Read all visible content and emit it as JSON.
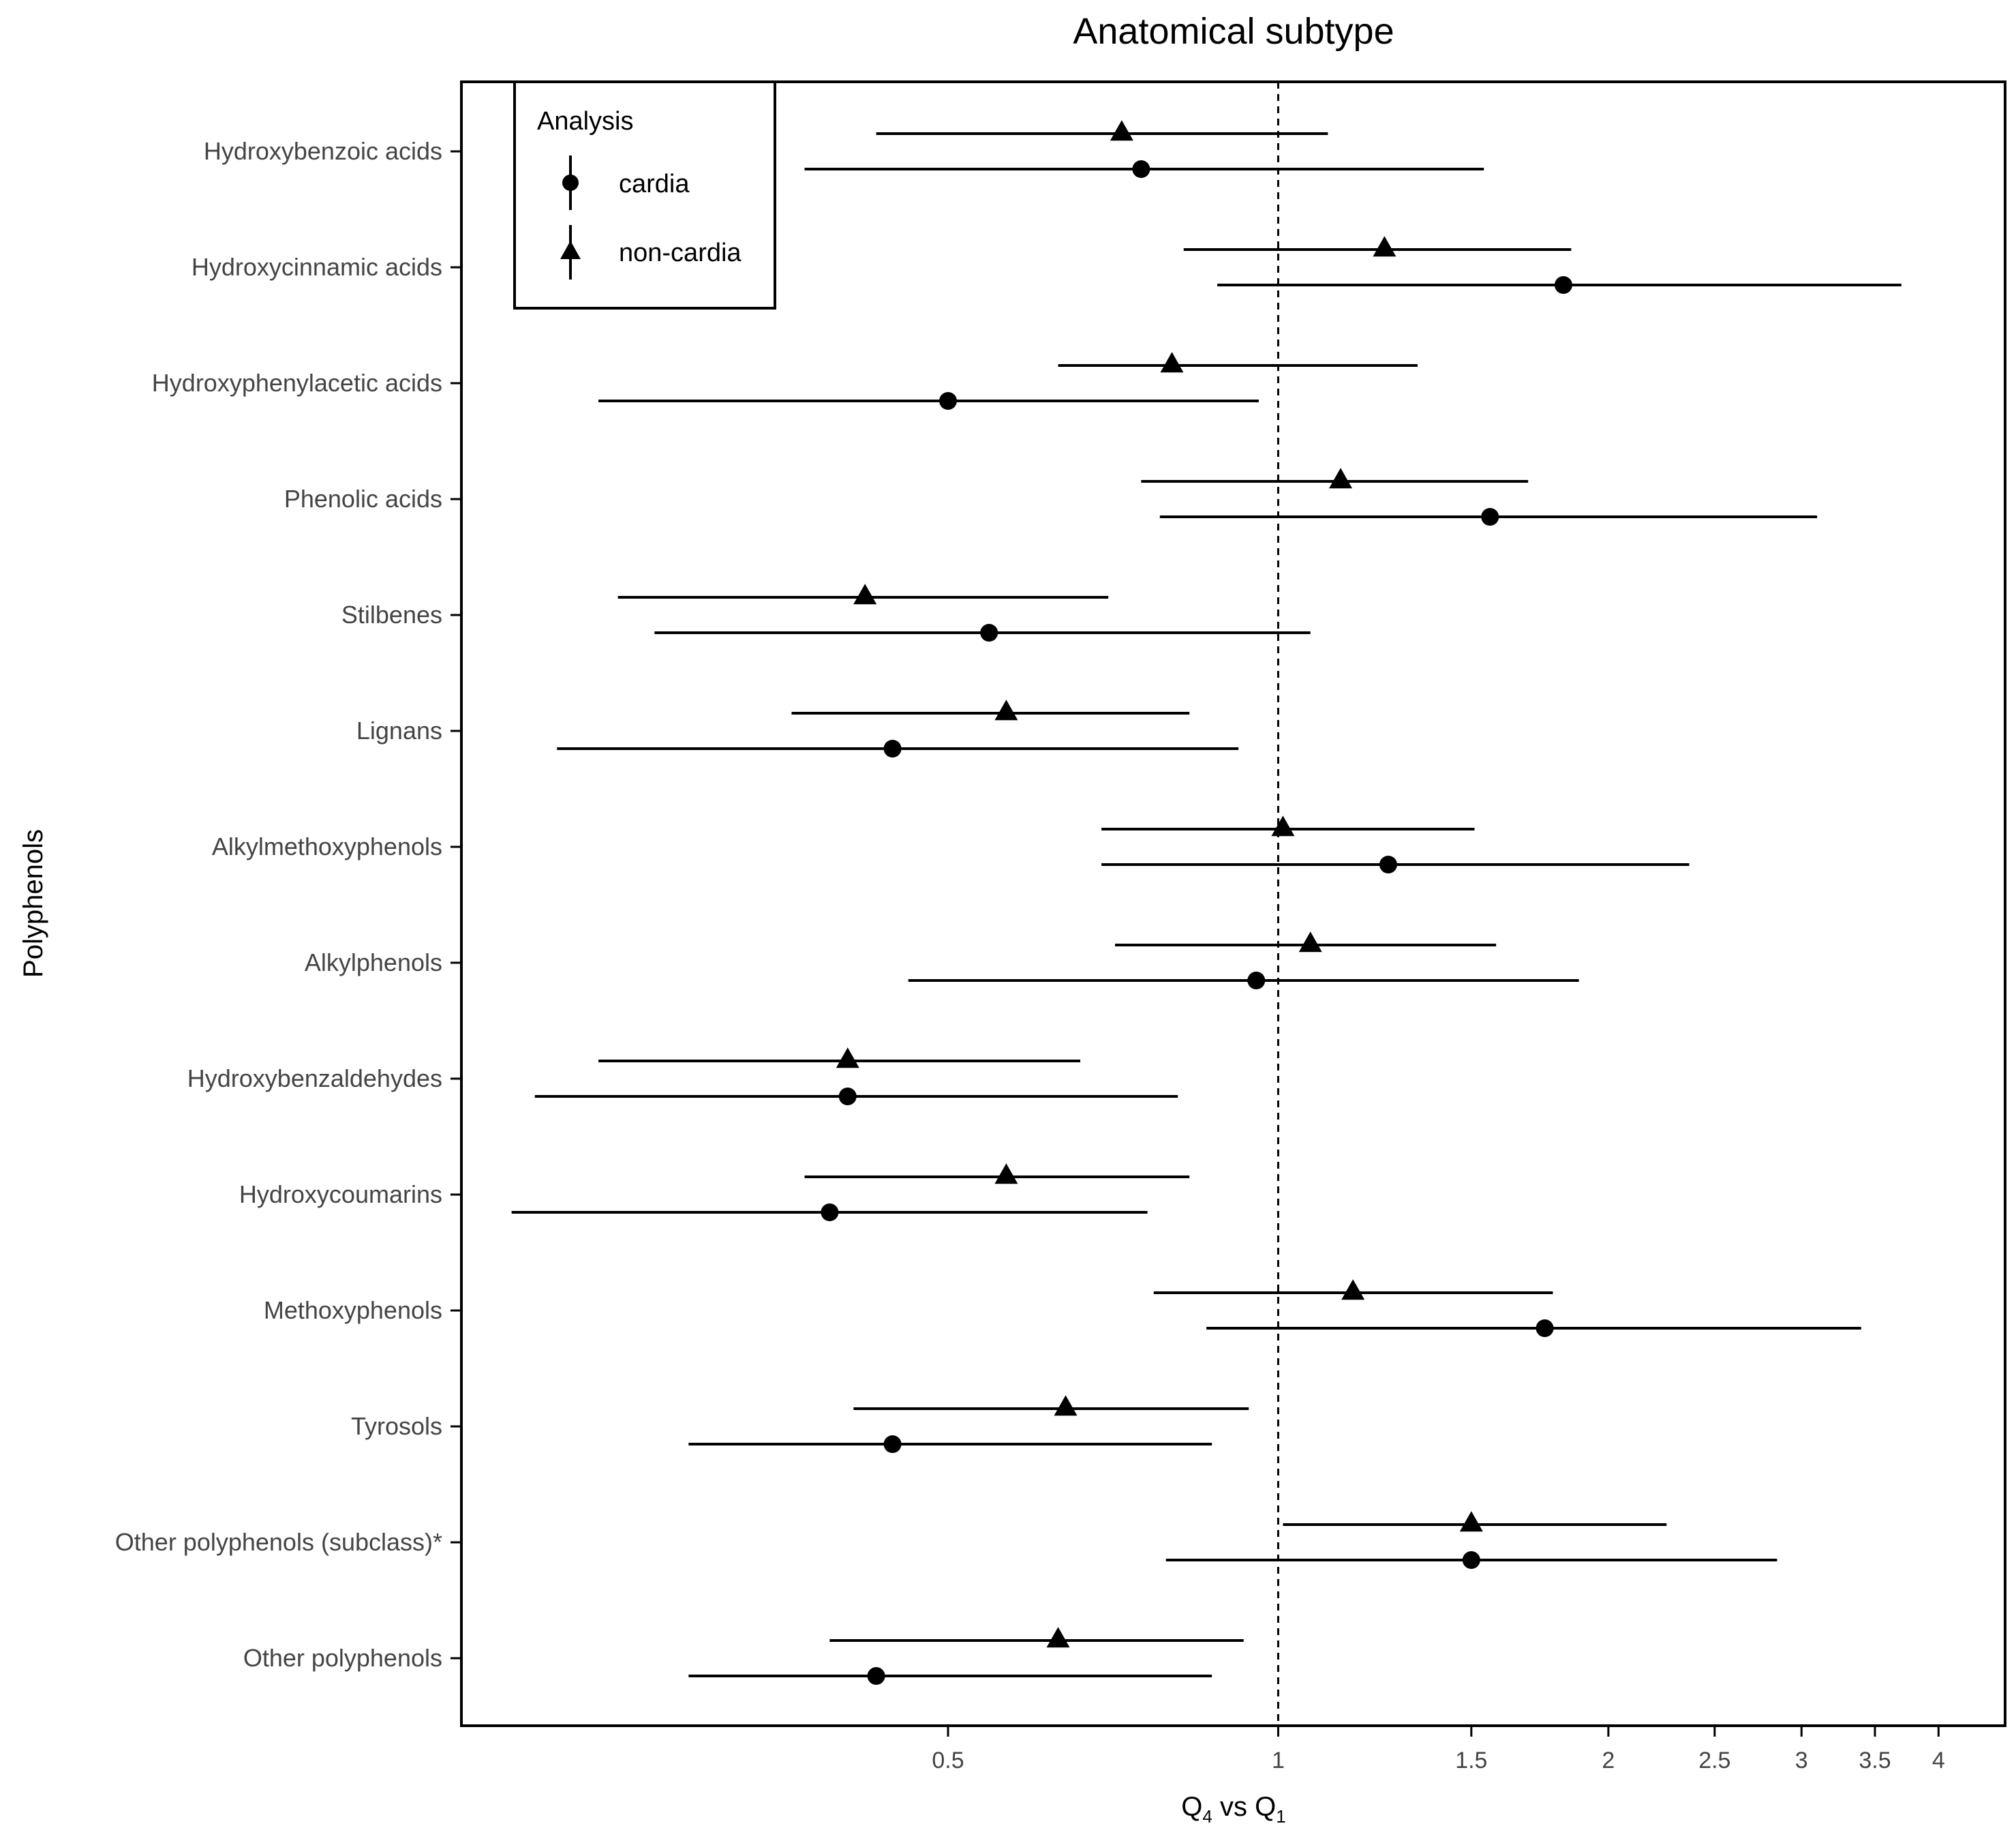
{
  "chart_data": {
    "type": "forest",
    "title": "Anatomical subtype",
    "xlabel": "Q4 vs Q1",
    "xlabel_parts": {
      "q_a": "Q",
      "sub_a": "4",
      "vs": " vs ",
      "q_b": "Q",
      "sub_b": "1"
    },
    "ylabel": "Polyphenols",
    "x_scale": "log",
    "xlim": [
      0.18,
      4.6
    ],
    "x_ticks": [
      0.5,
      1,
      1.5,
      2,
      2.5,
      3,
      3.5,
      4
    ],
    "x_tick_labels": [
      "0.5",
      "1",
      "1.5",
      "2",
      "2.5",
      "3",
      "3.5",
      "4"
    ],
    "reference_line": 1,
    "legend": {
      "title": "Analysis",
      "entries": [
        {
          "label": "cardia",
          "marker": "circle"
        },
        {
          "label": "non-cardia",
          "marker": "triangle"
        }
      ],
      "position": "top-left"
    },
    "categories": [
      "Hydroxybenzoic acids",
      "Hydroxycinnamic acids",
      "Hydroxyphenylacetic acids",
      "Phenolic acids",
      "Stilbenes",
      "Lignans",
      "Alkylmethoxyphenols",
      "Alkylphenols",
      "Hydroxybenzaldehydes",
      "Hydroxycoumarins",
      "Methoxyphenols",
      "Tyrosols",
      "Other polyphenols (subclass)*",
      "Other polyphenols"
    ],
    "series": [
      {
        "name": "non-cardia",
        "marker": "triangle",
        "estimates": [
          0.72,
          1.25,
          0.8,
          1.14,
          0.42,
          0.565,
          1.01,
          1.07,
          0.405,
          0.565,
          1.17,
          0.64,
          1.5,
          0.63
        ],
        "lower": [
          0.43,
          0.82,
          0.63,
          0.75,
          0.25,
          0.36,
          0.69,
          0.71,
          0.24,
          0.37,
          0.77,
          0.41,
          1.01,
          0.39
        ],
        "upper": [
          1.11,
          1.85,
          1.34,
          1.69,
          0.7,
          0.83,
          1.51,
          1.58,
          0.66,
          0.83,
          1.78,
          0.94,
          2.26,
          0.93
        ]
      },
      {
        "name": "cardia",
        "marker": "circle",
        "estimates": [
          0.75,
          1.82,
          0.5,
          1.56,
          0.545,
          0.445,
          1.26,
          0.955,
          0.405,
          0.39,
          1.75,
          0.445,
          1.5,
          0.43
        ],
        "lower": [
          0.37,
          0.88,
          0.24,
          0.78,
          0.27,
          0.22,
          0.69,
          0.46,
          0.21,
          0.2,
          0.86,
          0.29,
          0.79,
          0.29
        ],
        "upper": [
          1.54,
          3.7,
          0.96,
          3.1,
          1.07,
          0.92,
          2.37,
          1.88,
          0.81,
          0.76,
          3.4,
          0.87,
          2.85,
          0.87
        ]
      }
    ]
  }
}
